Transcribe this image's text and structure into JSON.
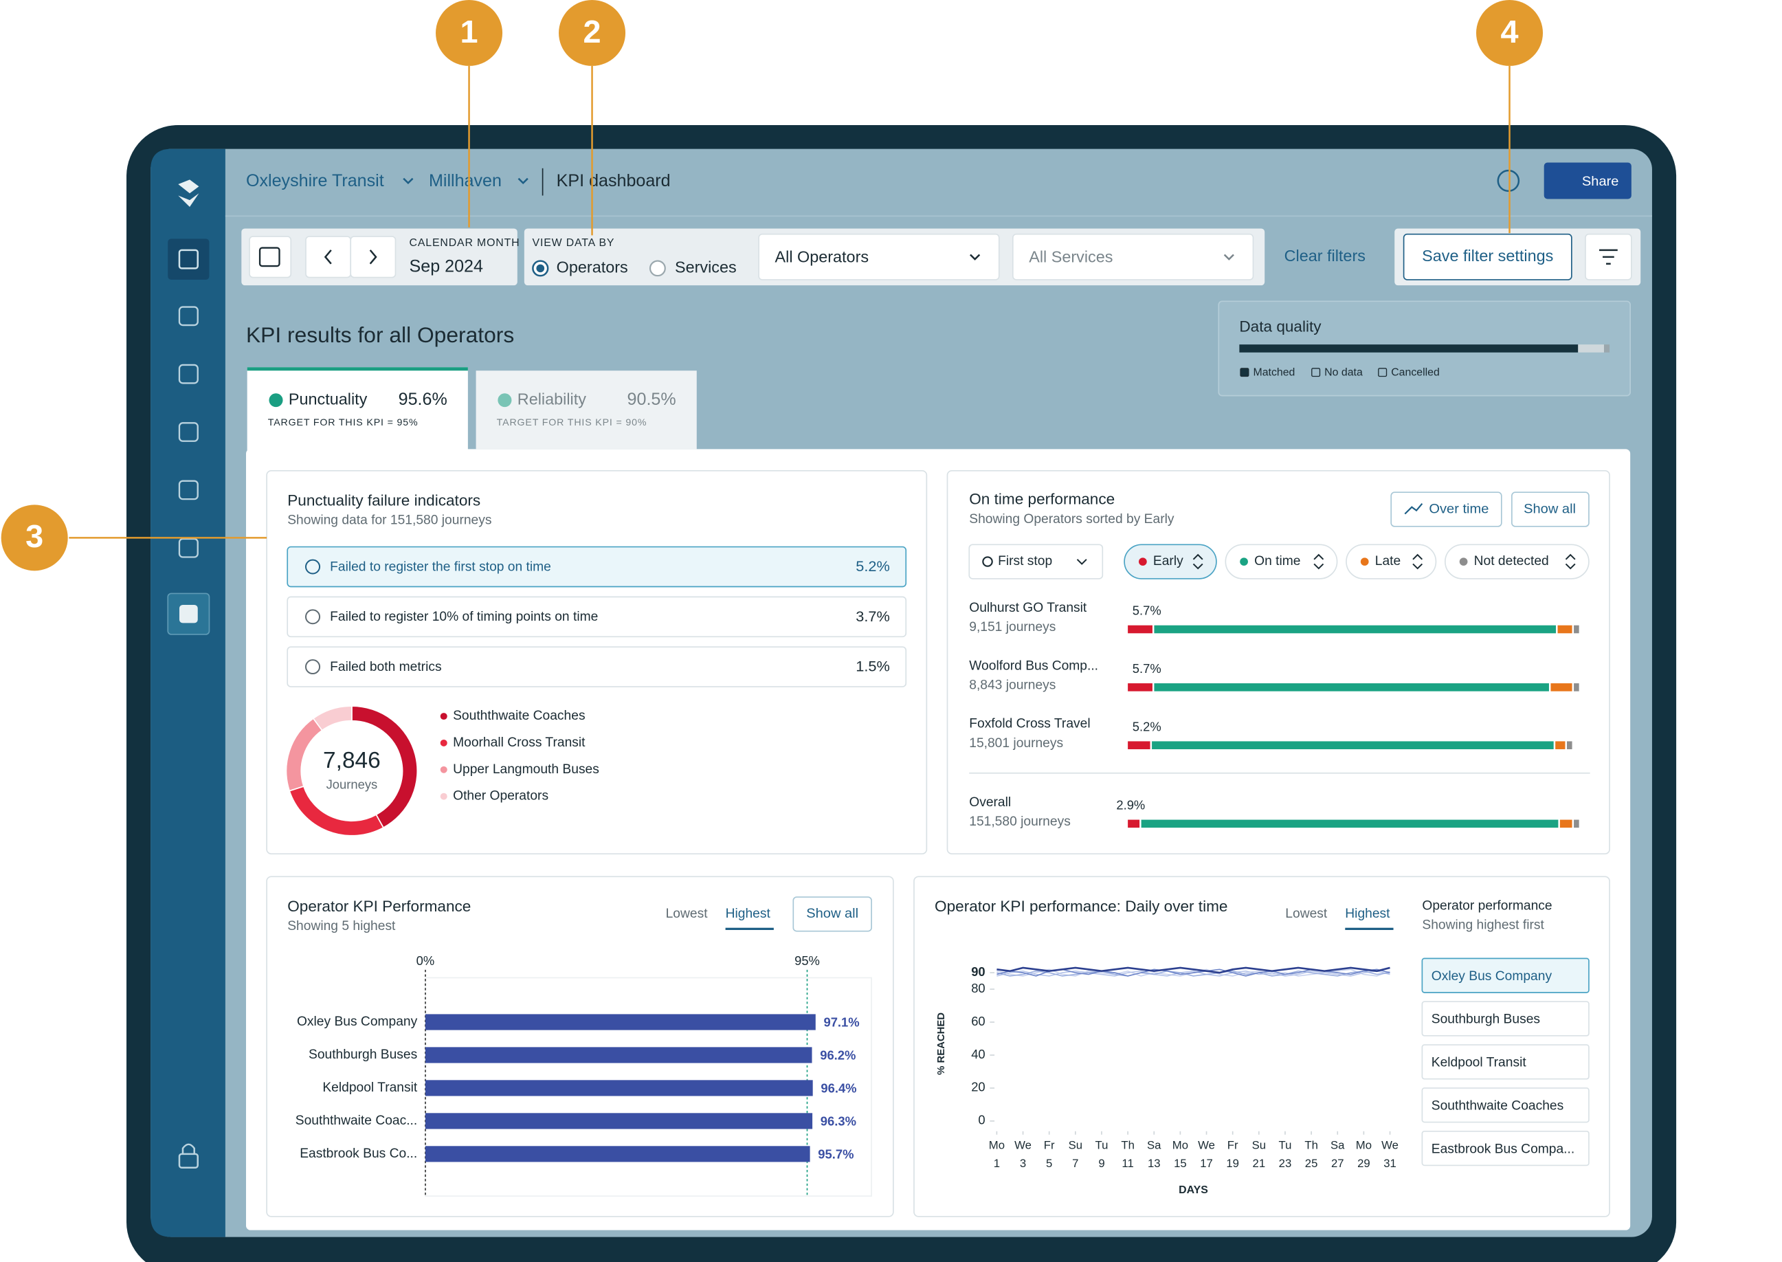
{
  "annotations": [
    "1",
    "2",
    "3",
    "4"
  ],
  "nav": {
    "org": "Oxleyshire Transit",
    "area": "Millhaven",
    "page": "KPI dashboard",
    "share": "Share"
  },
  "filters": {
    "month_label": "CALENDAR MONTH",
    "month": "Sep 2024",
    "view_label": "VIEW DATA BY",
    "view_options": [
      "Operators",
      "Services"
    ],
    "operators": "All Operators",
    "services": "All Services",
    "clear": "Clear filters",
    "save": "Save filter settings"
  },
  "kpi": {
    "title": "KPI results for all Operators",
    "tabs": [
      {
        "name": "Punctuality",
        "value": "95.6%",
        "target": "TARGET FOR THIS KPI = 95%"
      },
      {
        "name": "Reliability",
        "value": "90.5%",
        "target": "TARGET FOR THIS KPI = 90%"
      }
    ]
  },
  "data_quality": {
    "title": "Data quality",
    "legend": [
      "Matched",
      "No data",
      "Cancelled"
    ],
    "values": [
      91.5,
      7,
      1.5
    ],
    "colors": [
      "#16323d",
      "#cfd8dc",
      "#9aa7ad"
    ]
  },
  "failure_indicators": {
    "title": "Punctuality failure indicators",
    "subtitle": "Showing data for 151,580 journeys",
    "items": [
      {
        "label": "Failed to register the first stop on time",
        "value": "5.2%"
      },
      {
        "label": "Failed to register 10% of timing points on time",
        "value": "3.7%"
      },
      {
        "label": "Failed both metrics",
        "value": "1.5%"
      }
    ],
    "donut": {
      "total": "7,846",
      "unit": "Journeys",
      "legend": [
        "Souththwaite Coaches",
        "Moorhall Cross Transit",
        "Upper Langmouth Buses",
        "Other Operators"
      ],
      "values": [
        42,
        28,
        20,
        10
      ],
      "colors": [
        "#c8102e",
        "#e8283f",
        "#f4959f",
        "#f9cdd2"
      ]
    }
  },
  "on_time": {
    "title": "On time performance",
    "subtitle": "Showing Operators sorted by Early",
    "buttons": [
      "Over time",
      "Show all"
    ],
    "filters": [
      "First stop",
      "Early",
      "On time",
      "Late",
      "Not detected"
    ],
    "colors": [
      "#d7192f",
      "#1aa383",
      "#e8761b",
      "#8d8d8d"
    ],
    "rows": [
      {
        "name": "Oulhurst GO Transit",
        "journeys": "9,151 journeys",
        "early_label": "5.7%",
        "values": [
          5.7,
          87.3,
          3.5,
          1.5
        ]
      },
      {
        "name": "Woolford Bus Comp...",
        "journeys": "8,843 journeys",
        "early_label": "5.7%",
        "values": [
          5.7,
          85.8,
          5,
          1.5
        ]
      },
      {
        "name": "Foxfold Cross Travel",
        "journeys": "15,801 journeys",
        "early_label": "5.2%",
        "values": [
          5.2,
          87.3,
          2.5,
          1.5
        ]
      },
      {
        "name": "Overall",
        "journeys": "151,580 journeys",
        "early_label": "2.9%",
        "values": [
          2.9,
          90.6,
          3,
          1.5
        ]
      }
    ]
  },
  "operator_kpi": {
    "title": "Operator KPI Performance",
    "subtitle": "Showing 5 highest",
    "toggle": [
      "Lowest",
      "Highest"
    ],
    "button": "Show all",
    "chart": {
      "type": "bar",
      "categories": [
        "Oxley Bus Company",
        "Southburgh Buses",
        "Keldpool Transit",
        "Souththwaite Coac...",
        "Eastbrook Bus Co..."
      ],
      "values": [
        97.1,
        96.2,
        96.4,
        96.3,
        95.7
      ],
      "value_labels": [
        "97.1%",
        "96.2%",
        "96.4%",
        "96.3%",
        "95.7%"
      ],
      "xlim": [
        0,
        111
      ],
      "xticks": [
        {
          "value": 0,
          "label": "0%"
        },
        {
          "value": 95,
          "label": "95%"
        }
      ],
      "color": "#3a4fa3"
    }
  },
  "daily": {
    "title": "Operator KPI performance: Daily over time",
    "toggle": [
      "Lowest",
      "Highest"
    ],
    "chart": {
      "type": "line",
      "ylabel": "% REACHED",
      "xlabel": "DAYS",
      "xlim": [
        1,
        31
      ],
      "ylim": [
        0,
        99
      ],
      "yticks": [
        0,
        20,
        40,
        60,
        80,
        90
      ],
      "x": [
        1,
        2,
        3,
        4,
        5,
        6,
        7,
        8,
        9,
        10,
        11,
        12,
        13,
        14,
        15,
        16,
        17,
        18,
        19,
        20,
        21,
        22,
        23,
        24,
        25,
        26,
        27,
        28,
        29,
        30,
        31
      ],
      "xticks": [
        1,
        3,
        5,
        7,
        9,
        11,
        13,
        15,
        17,
        19,
        21,
        23,
        25,
        27,
        29,
        31
      ],
      "xtick_weekdays": [
        "Mo",
        "We",
        "Fr",
        "Su",
        "Tu",
        "Th",
        "Sa",
        "Mo",
        "We",
        "Fr",
        "Su",
        "Tu",
        "Th",
        "Sa",
        "Mo",
        "We"
      ],
      "series": [
        {
          "name": "Oxley Bus Company",
          "color": "#2b3f8f",
          "values": [
            92,
            91,
            93,
            92,
            91,
            92,
            93,
            92,
            91,
            92,
            93,
            92,
            91,
            92,
            93,
            92,
            91,
            90,
            92,
            93,
            92,
            91,
            92,
            93,
            92,
            91,
            92,
            93,
            92,
            91,
            93
          ]
        },
        {
          "name": "Southburgh Buses",
          "color": "#6f86c9",
          "values": [
            89,
            91,
            90,
            88,
            91,
            92,
            90,
            89,
            91,
            90,
            88,
            90,
            92,
            91,
            89,
            90,
            91,
            92,
            90,
            88,
            90,
            91,
            89,
            90,
            92,
            91,
            90,
            89,
            91,
            92,
            90
          ]
        },
        {
          "name": "Keldpool Transit",
          "color": "#9db0df",
          "values": [
            90,
            88,
            89,
            91,
            90,
            88,
            89,
            90,
            91,
            89,
            88,
            90,
            89,
            91,
            90,
            88,
            89,
            90,
            91,
            89,
            90,
            88,
            89,
            91,
            90,
            89,
            88,
            90,
            91,
            89,
            90
          ]
        },
        {
          "name": "Souththwaite Coaches",
          "color": "#b8c6ea",
          "values": [
            88,
            90,
            91,
            89,
            88,
            90,
            91,
            90,
            89,
            88,
            90,
            91,
            89,
            88,
            90,
            91,
            89,
            88,
            90,
            91,
            89,
            90,
            88,
            89,
            91,
            90,
            89,
            88,
            90,
            91,
            89
          ]
        },
        {
          "name": "Eastbrook Bus Compa...",
          "color": "#c9d3ef",
          "values": [
            91,
            89,
            88,
            90,
            92,
            89,
            88,
            91,
            90,
            89,
            91,
            88,
            90,
            89,
            88,
            90,
            92,
            89,
            88,
            90,
            91,
            89,
            90,
            88,
            89,
            90,
            91,
            92,
            89,
            88,
            91
          ]
        }
      ]
    },
    "list": {
      "title": "Operator performance",
      "subtitle": "Showing highest first"
    }
  }
}
